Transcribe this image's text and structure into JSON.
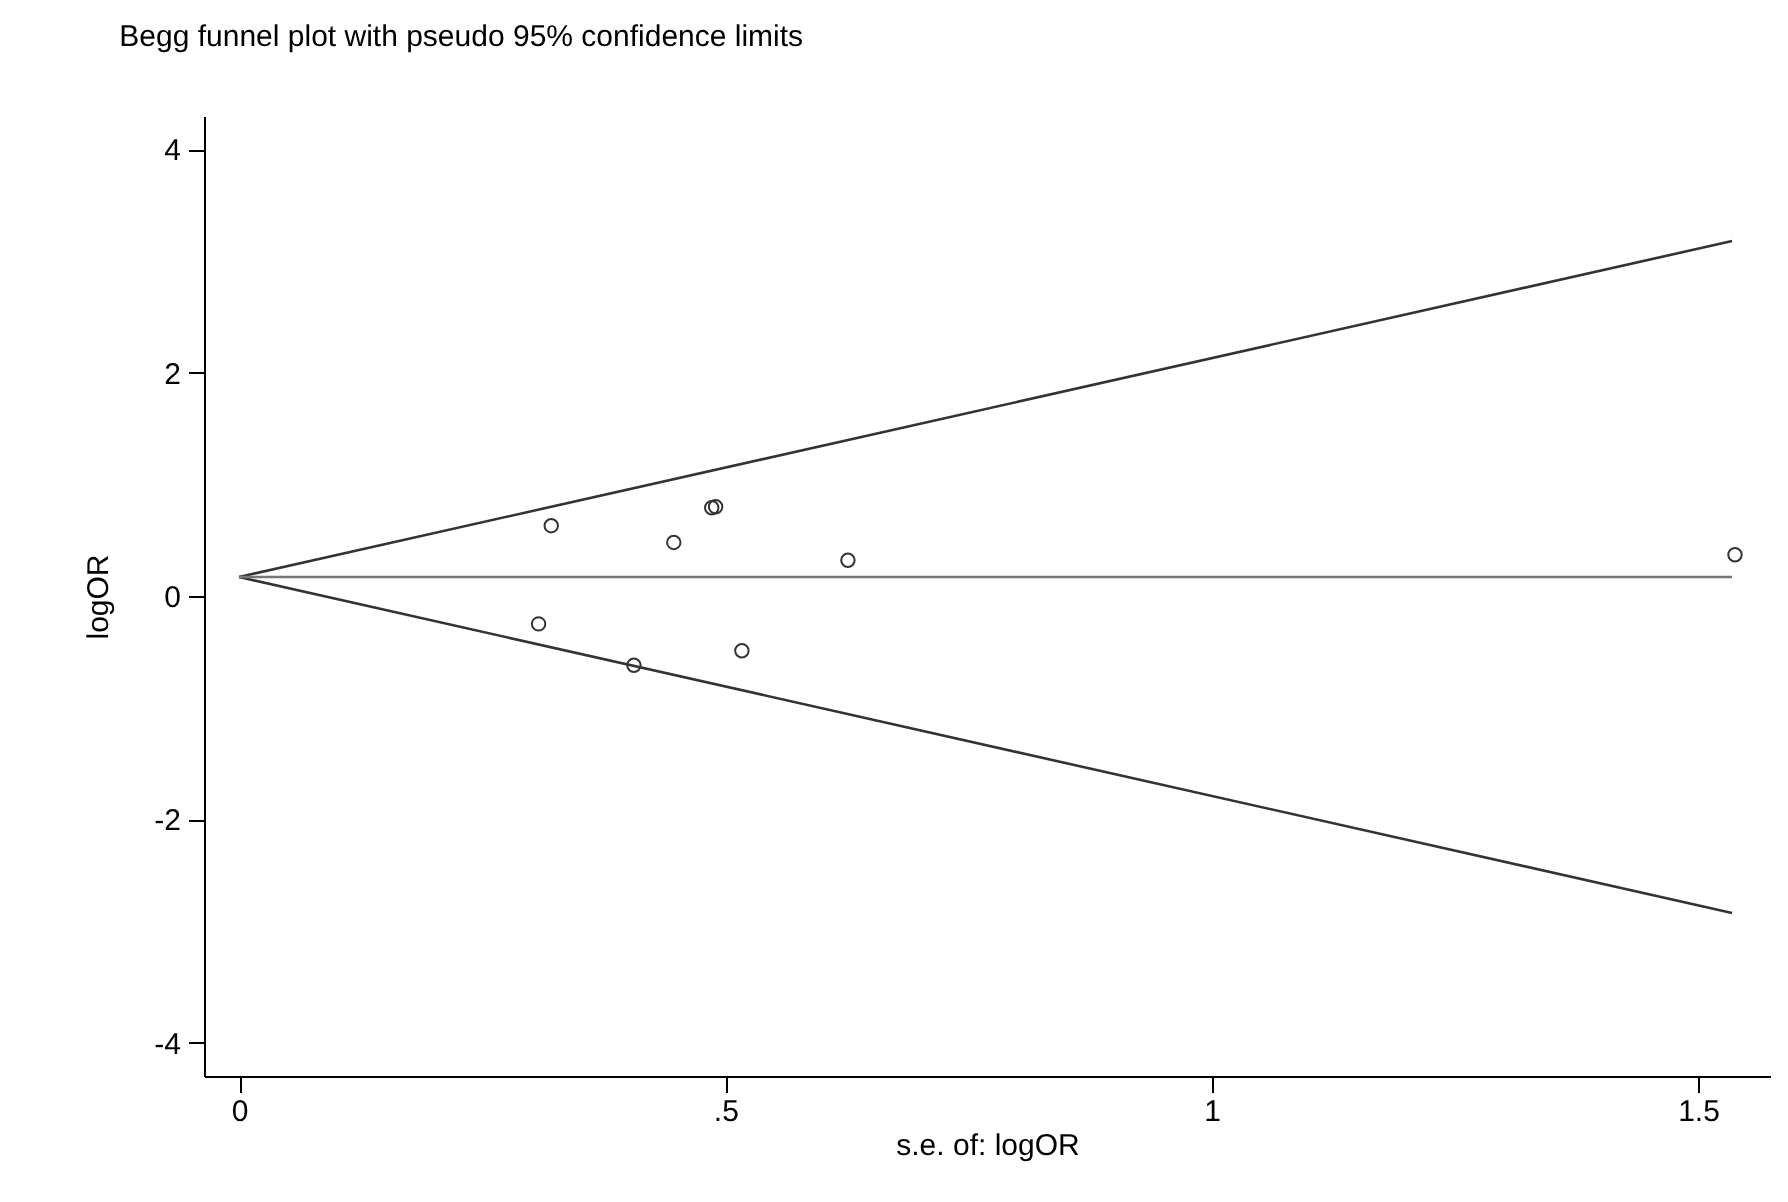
{
  "chart_data": {
    "type": "scatter",
    "title": "Begg funnel plot with pseudo 95% confidence limits",
    "xlabel": "s.e. of: logOR",
    "ylabel": "logOR",
    "series": [
      {
        "color": "#333333",
        "marker": "circle",
        "x": [
          0.321,
          0.308,
          0.447,
          0.406,
          0.486,
          0.49,
          0.517,
          0.626,
          1.538
        ],
        "values": [
          0.63,
          -0.25,
          0.48,
          -0.62,
          0.79,
          0.8,
          -0.49,
          0.32,
          0.37
        ]
      },
      {
        "type": "line",
        "line_style": "solid",
        "color": "#333333",
        "x": [
          0,
          1.535
        ],
        "values": [
          0.17,
          3.18
        ]
      },
      {
        "type": "line",
        "line_style": "solid",
        "color": "#333333",
        "x": [
          0,
          1.535
        ],
        "values": [
          0.17,
          -2.84
        ]
      },
      {
        "type": "line",
        "line_style": "solid",
        "color": "#777777",
        "x": [
          0,
          1.535
        ],
        "values": [
          0.17,
          0.17
        ]
      }
    ],
    "xlim": [
      -0.036,
      1.574
    ],
    "ylim": [
      -4.3,
      4.3
    ],
    "xticks": [
      0,
      {
        "value": 0.5,
        "label": ".5"
      },
      1,
      1.5
    ],
    "yticks": [
      -4,
      -2,
      0,
      2,
      4
    ],
    "grid": false
  }
}
